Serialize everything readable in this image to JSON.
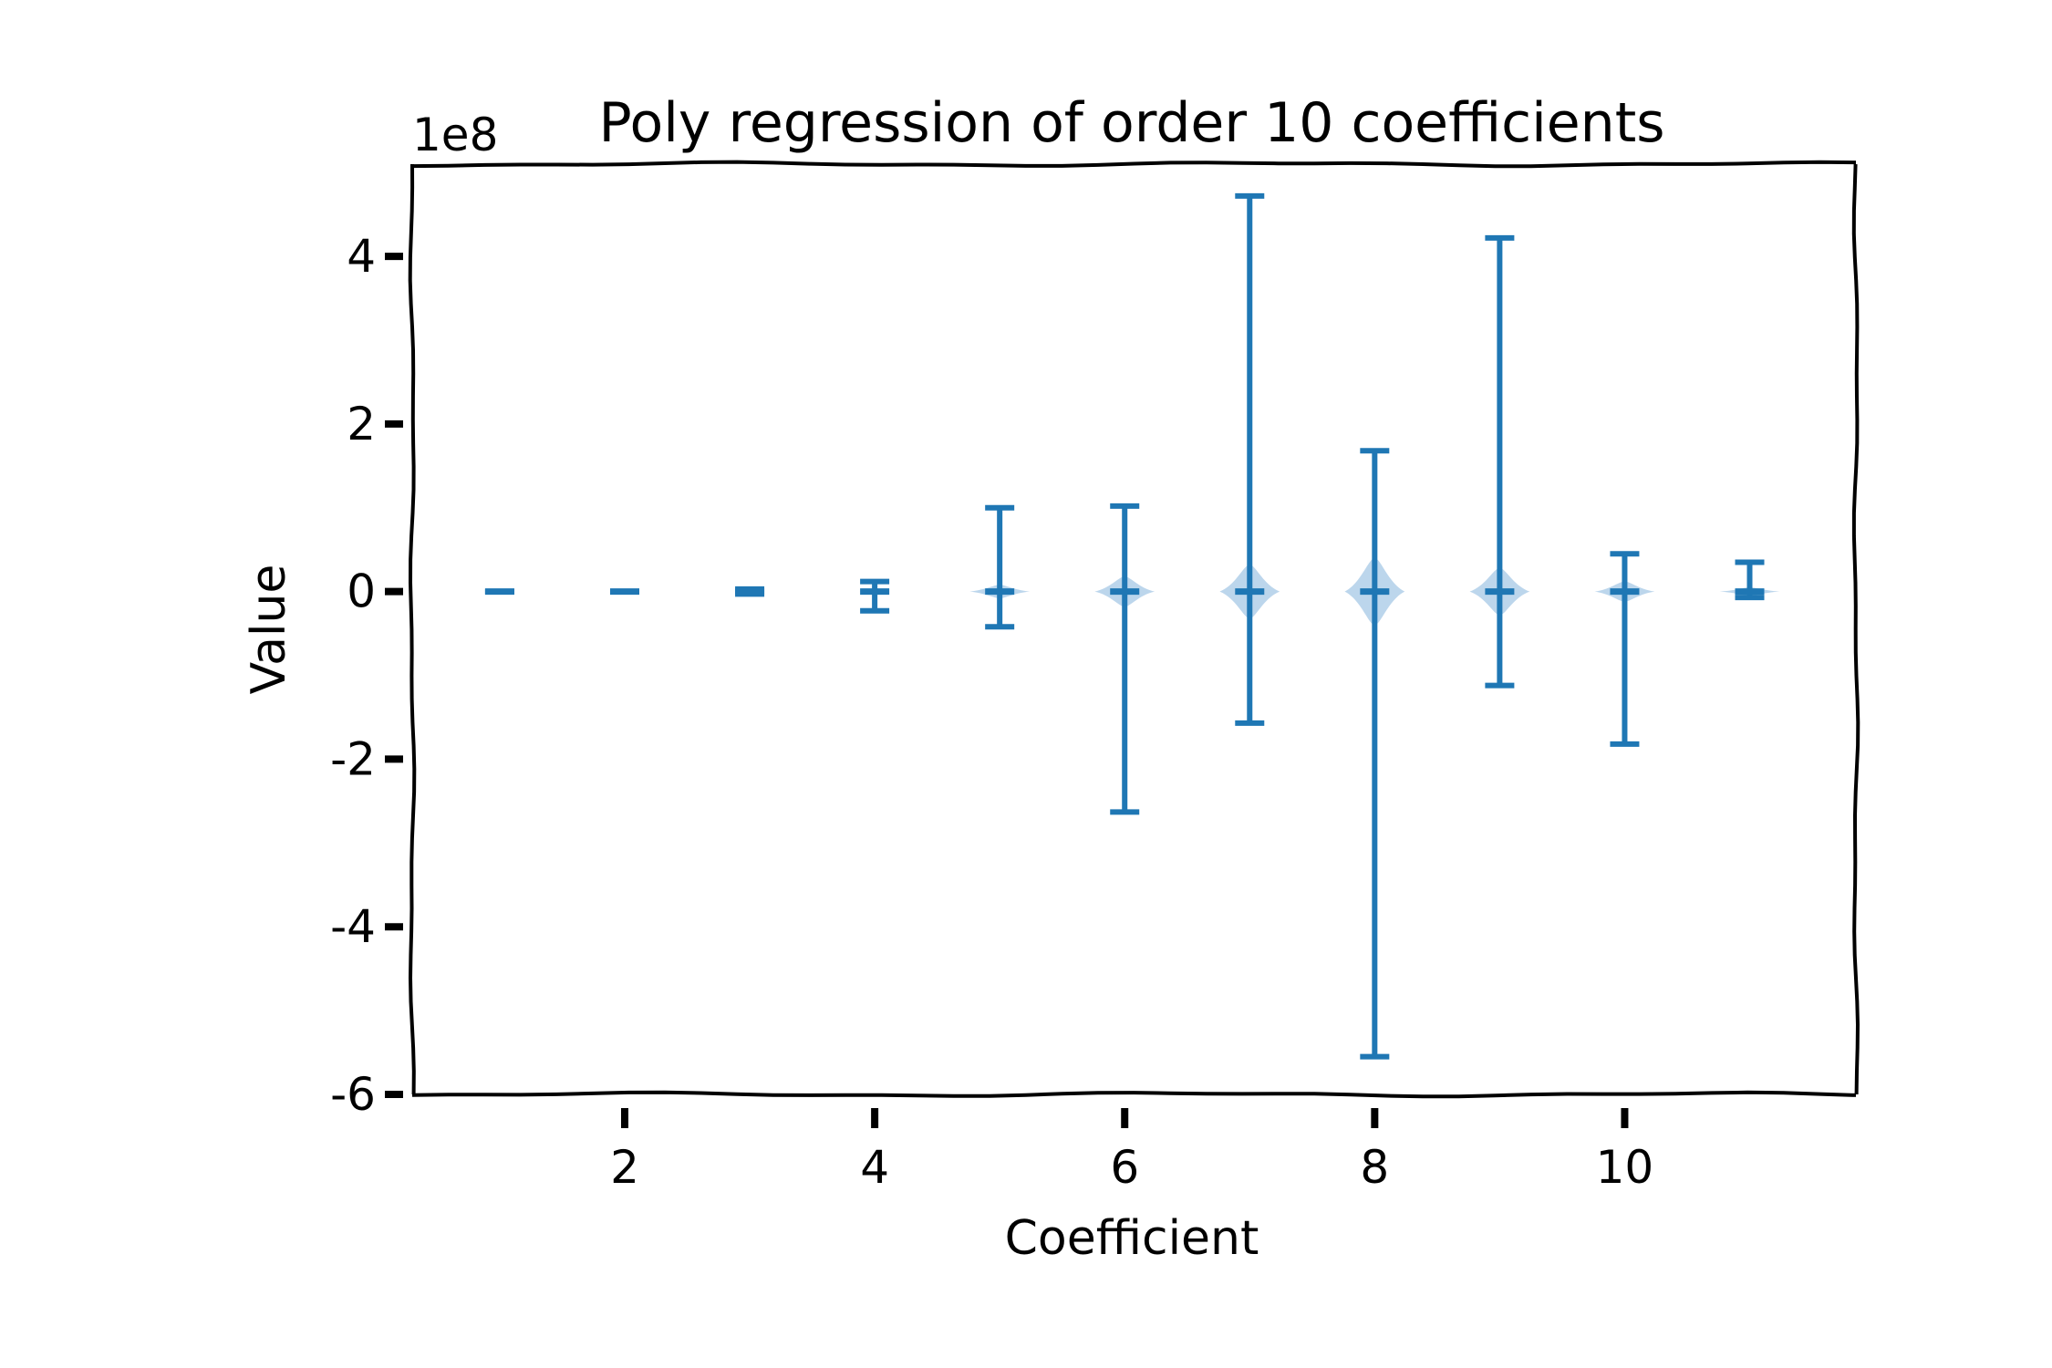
{
  "chart_data": {
    "type": "violin",
    "title": "Poly regression of order 10 coefficients",
    "xlabel": "Coefficient",
    "ylabel": "Value",
    "y_offset_label": "1e8",
    "y_scale_factor": 100000000,
    "xlim": [
      0.3,
      11.85
    ],
    "ylim": [
      -6.0,
      5.1
    ],
    "xticks": [
      2,
      4,
      6,
      8,
      10
    ],
    "yticks": [
      -6,
      -4,
      -2,
      0,
      2,
      4
    ],
    "grid": false,
    "style": "xkcd",
    "colors": {
      "series": "#1f77b4",
      "body": "#a6c8e6",
      "axis": "#000000"
    },
    "series": [
      {
        "coefficients": [
          1,
          2,
          3,
          4,
          5,
          6,
          7,
          8,
          9,
          10,
          11
        ],
        "min": [
          0.0,
          0.0,
          -0.03,
          -0.23,
          -0.42,
          -2.63,
          -1.57,
          -5.55,
          -1.12,
          -1.82,
          -0.07
        ],
        "max": [
          0.0,
          0.0,
          0.03,
          0.12,
          1.0,
          1.02,
          4.72,
          1.68,
          4.22,
          0.45,
          0.35
        ],
        "median": [
          0.0,
          0.0,
          0.0,
          0.0,
          0.0,
          0.0,
          0.0,
          0.0,
          0.0,
          0.0,
          0.0
        ],
        "body_halfwidth": [
          0.0,
          0.0,
          0.0,
          0.12,
          0.24,
          0.24,
          0.24,
          0.24,
          0.24,
          0.24,
          0.24
        ],
        "body_halfheight": [
          0.0,
          0.0,
          0.0,
          0.04,
          0.08,
          0.18,
          0.32,
          0.4,
          0.28,
          0.12,
          0.05
        ]
      }
    ]
  }
}
